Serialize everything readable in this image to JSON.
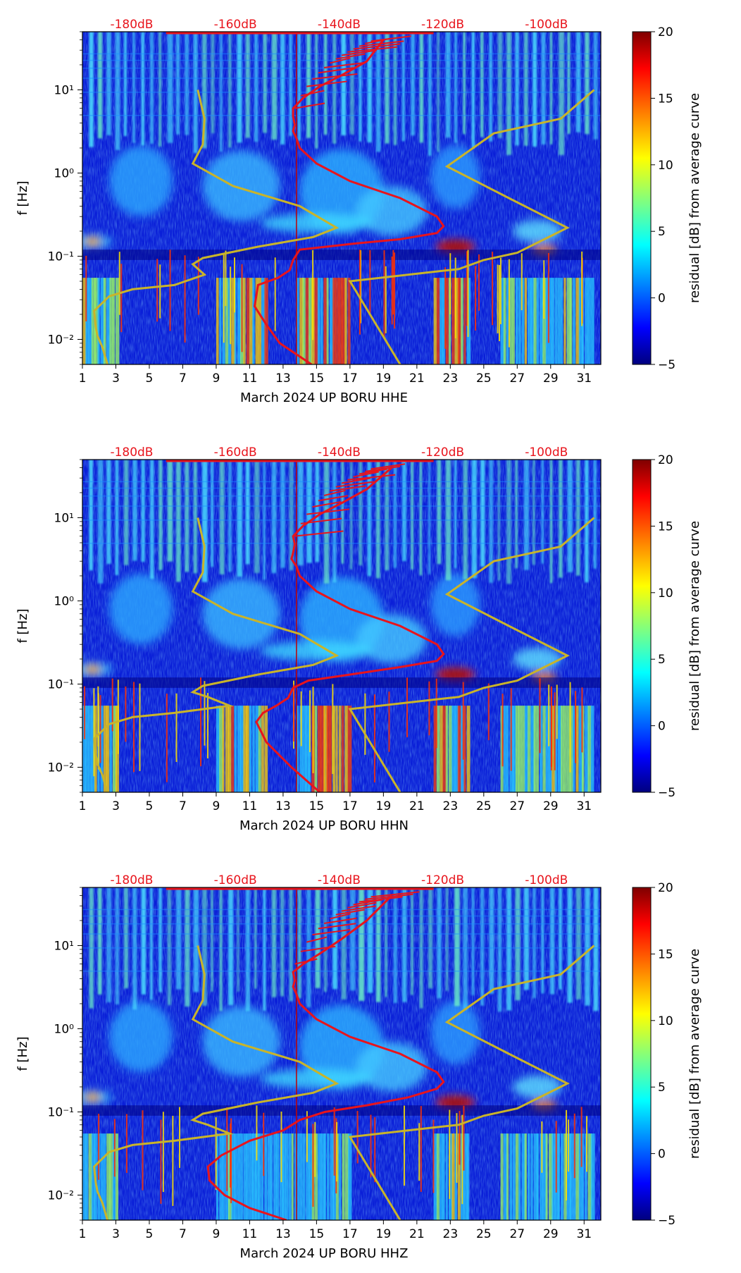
{
  "figure": {
    "month_label": "March 2024",
    "network": "UP",
    "station": "BORU",
    "colormap": "jet"
  },
  "chart_data": [
    {
      "type": "heatmap",
      "panel": "HHE",
      "xlabel": "March 2024 UP BORU  HHE",
      "ylabel": "f [Hz]",
      "x_ticks": [
        "1",
        "3",
        "5",
        "7",
        "9",
        "11",
        "13",
        "15",
        "17",
        "19",
        "21",
        "23",
        "25",
        "27",
        "29",
        "31"
      ],
      "y_ticks": [
        "10⁻²",
        "10⁻¹",
        "10⁰",
        "10¹"
      ],
      "xlim": [
        1,
        32
      ],
      "ylim_hz": [
        0.005,
        50
      ],
      "db_axis_labels": [
        "-180dB",
        "-160dB",
        "-140dB",
        "-120dB",
        "-100dB"
      ],
      "db_axis_positions_day": [
        5,
        11.2,
        17.4,
        23.6,
        29.8
      ],
      "colorbar": {
        "label": "residual [dB] from average curve",
        "ticks": [
          "20",
          "15",
          "10",
          "5",
          "0",
          "−5"
        ],
        "min": -5,
        "max": 20
      },
      "red_curve": {
        "day": [
          14.7,
          12.8,
          12.0,
          11.3,
          11.5,
          12.7,
          13.4,
          13.6,
          14.0,
          17.0,
          20.0,
          22.2,
          22.6,
          22.2,
          20.0,
          17.0,
          15.0,
          14.0,
          13.8,
          13.6,
          13.7,
          13.6,
          13.6,
          14.2,
          15.2,
          16.5,
          18.0,
          19.0
        ],
        "hz": [
          0.005,
          0.009,
          0.015,
          0.025,
          0.045,
          0.055,
          0.068,
          0.09,
          0.12,
          0.14,
          0.16,
          0.19,
          0.23,
          0.3,
          0.5,
          0.8,
          1.3,
          2.0,
          2.6,
          3.2,
          3.8,
          4.8,
          6.0,
          8.0,
          11,
          15,
          22,
          40
        ]
      },
      "gold_curve_left": {
        "day": [
          2.5,
          2.2,
          1.9,
          1.8,
          1.7,
          2.6,
          4.0,
          6.5,
          8.3,
          7.6,
          8.2,
          11.5,
          14.8,
          16.2,
          14.0,
          10.0,
          7.6,
          8.2,
          8.3,
          7.9
        ],
        "hz": [
          0.005,
          0.008,
          0.011,
          0.014,
          0.022,
          0.033,
          0.04,
          0.045,
          0.06,
          0.08,
          0.095,
          0.13,
          0.17,
          0.22,
          0.4,
          0.7,
          1.3,
          2.2,
          4.5,
          10
        ]
      },
      "gold_curve_right": {
        "day": [
          20.0,
          17.0,
          22.0,
          23.5,
          25.0,
          27.0,
          30.0,
          26.5,
          22.8,
          25.6,
          29.6,
          31.6
        ],
        "hz": [
          0.005,
          0.05,
          0.065,
          0.07,
          0.09,
          0.11,
          0.22,
          0.5,
          1.2,
          3.0,
          4.5,
          10
        ]
      }
    },
    {
      "type": "heatmap",
      "panel": "HHN",
      "xlabel": "March 2024 UP BORU  HHN",
      "ylabel": "f [Hz]",
      "x_ticks": [
        "1",
        "3",
        "5",
        "7",
        "9",
        "11",
        "13",
        "15",
        "17",
        "19",
        "21",
        "23",
        "25",
        "27",
        "29",
        "31"
      ],
      "y_ticks": [
        "10⁻²",
        "10⁻¹",
        "10⁰",
        "10¹"
      ],
      "xlim": [
        1,
        32
      ],
      "ylim_hz": [
        0.005,
        50
      ],
      "db_axis_labels": [
        "-180dB",
        "-160dB",
        "-140dB",
        "-120dB",
        "-100dB"
      ],
      "db_axis_positions_day": [
        5,
        11.2,
        17.4,
        23.6,
        29.8
      ],
      "colorbar": {
        "label": "residual [dB] from average curve",
        "ticks": [
          "20",
          "15",
          "10",
          "5",
          "0",
          "−5"
        ],
        "min": -5,
        "max": 20
      },
      "red_curve": {
        "day": [
          15.2,
          13.5,
          12.0,
          11.4,
          11.8,
          12.6,
          13.3,
          13.6,
          14.5,
          17.0,
          20.0,
          22.2,
          22.6,
          22.2,
          20.0,
          17.0,
          15.0,
          14.0,
          13.8,
          13.5,
          13.6,
          13.7,
          13.6,
          14.2,
          15.2,
          16.5,
          18.0,
          19.5
        ],
        "hz": [
          0.005,
          0.01,
          0.02,
          0.035,
          0.045,
          0.055,
          0.068,
          0.09,
          0.11,
          0.13,
          0.16,
          0.19,
          0.23,
          0.3,
          0.5,
          0.8,
          1.3,
          2.0,
          2.6,
          3.2,
          3.8,
          4.8,
          6.0,
          8.0,
          11,
          15,
          22,
          40
        ]
      },
      "gold_curve_left": {
        "day": [
          2.5,
          2.2,
          1.9,
          1.8,
          1.7,
          2.6,
          4.0,
          6.5,
          9.8,
          8.5,
          7.6,
          8.2,
          11.5,
          14.8,
          16.2,
          14.0,
          10.0,
          7.6,
          8.2,
          8.3,
          7.9
        ],
        "hz": [
          0.005,
          0.008,
          0.011,
          0.014,
          0.022,
          0.033,
          0.04,
          0.045,
          0.055,
          0.07,
          0.08,
          0.095,
          0.13,
          0.17,
          0.22,
          0.4,
          0.7,
          1.3,
          2.2,
          4.5,
          10
        ]
      },
      "gold_curve_right": {
        "day": [
          20.0,
          17.0,
          22.0,
          23.5,
          25.0,
          27.0,
          30.0,
          26.5,
          22.8,
          25.6,
          29.6,
          31.6
        ],
        "hz": [
          0.005,
          0.05,
          0.065,
          0.07,
          0.09,
          0.11,
          0.22,
          0.5,
          1.2,
          3.0,
          4.5,
          10
        ]
      }
    },
    {
      "type": "heatmap",
      "panel": "HHZ",
      "xlabel": "March 2024 UP BORU  HHZ",
      "ylabel": "f [Hz]",
      "x_ticks": [
        "1",
        "3",
        "5",
        "7",
        "9",
        "11",
        "13",
        "15",
        "17",
        "19",
        "21",
        "23",
        "25",
        "27",
        "29",
        "31"
      ],
      "y_ticks": [
        "10⁻²",
        "10⁻¹",
        "10⁰",
        "10¹"
      ],
      "xlim": [
        1,
        32
      ],
      "ylim_hz": [
        0.005,
        50
      ],
      "db_axis_labels": [
        "-180dB",
        "-160dB",
        "-140dB",
        "-120dB",
        "-100dB"
      ],
      "db_axis_positions_day": [
        5,
        11.2,
        17.4,
        23.6,
        29.8
      ],
      "colorbar": {
        "label": "residual [dB] from average curve",
        "ticks": [
          "20",
          "15",
          "10",
          "5",
          "0",
          "−5"
        ],
        "min": -5,
        "max": 20
      },
      "red_curve": {
        "day": [
          13.2,
          11.0,
          9.5,
          8.6,
          8.5,
          9.3,
          11.0,
          13.0,
          14.0,
          15.5,
          18.0,
          20.5,
          22.2,
          22.6,
          22.2,
          20.0,
          17.0,
          15.0,
          14.0,
          13.8,
          13.6,
          13.7,
          13.6,
          14.2,
          15.2,
          16.5,
          18.0,
          19.5
        ],
        "hz": [
          0.005,
          0.007,
          0.01,
          0.015,
          0.022,
          0.03,
          0.045,
          0.06,
          0.08,
          0.1,
          0.12,
          0.15,
          0.19,
          0.23,
          0.3,
          0.5,
          0.8,
          1.3,
          2.0,
          2.6,
          3.2,
          3.8,
          4.8,
          6.0,
          8.0,
          12,
          20,
          40
        ]
      },
      "gold_curve_left": {
        "day": [
          2.5,
          2.2,
          1.9,
          1.8,
          1.7,
          2.6,
          4.0,
          6.5,
          9.8,
          8.5,
          7.6,
          8.2,
          11.5,
          14.8,
          16.2,
          14.0,
          10.0,
          7.6,
          8.2,
          8.3,
          7.9
        ],
        "hz": [
          0.005,
          0.008,
          0.011,
          0.014,
          0.022,
          0.033,
          0.04,
          0.045,
          0.055,
          0.07,
          0.08,
          0.095,
          0.13,
          0.17,
          0.22,
          0.4,
          0.7,
          1.3,
          2.2,
          4.5,
          10
        ]
      },
      "gold_curve_right": {
        "day": [
          20.0,
          17.0,
          22.0,
          23.5,
          25.0,
          27.0,
          30.0,
          26.5,
          22.8,
          25.6,
          29.6,
          31.6
        ],
        "hz": [
          0.005,
          0.05,
          0.065,
          0.07,
          0.09,
          0.11,
          0.22,
          0.5,
          1.2,
          3.0,
          4.5,
          10
        ]
      }
    }
  ]
}
